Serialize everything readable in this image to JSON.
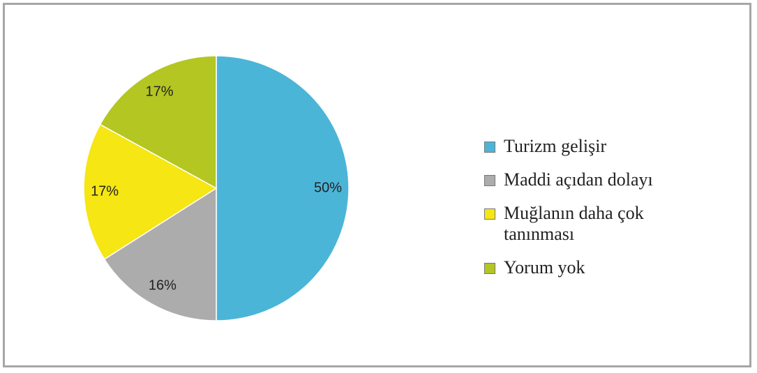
{
  "chart_data": {
    "type": "pie",
    "categories": [
      "Turizm gelişir",
      "Maddi açıdan dolayı",
      "Muğlanın daha çok tanınması",
      "Yorum yok"
    ],
    "values": [
      50,
      16,
      17,
      17
    ],
    "colors": [
      "#4bb5d8",
      "#acacac",
      "#f5e614",
      "#b3c622"
    ],
    "value_labels": [
      "50%",
      "16%",
      "17%",
      "17%"
    ]
  }
}
